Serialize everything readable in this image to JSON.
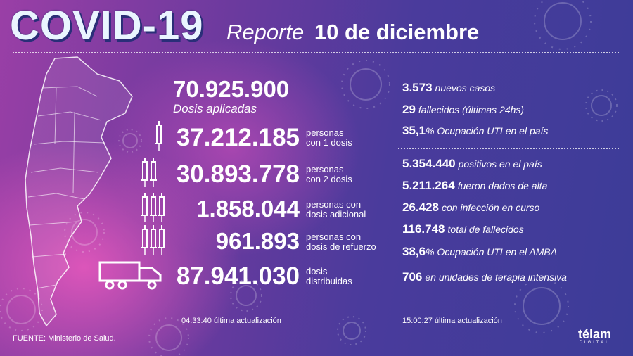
{
  "header": {
    "title": "COVID-19",
    "subtitle_prefix": "Reporte",
    "subtitle_date": "10 de diciembre"
  },
  "doses_applied": {
    "value": "70.925.900",
    "label": "Dosis aplicadas"
  },
  "vaccine_stats": [
    {
      "value": "37.212.185",
      "label_line1": "personas",
      "label_line2": "con 1 dosis",
      "icon": "syringe-icon"
    },
    {
      "value": "30.893.778",
      "label_line1": "personas",
      "label_line2": "con 2 dosis",
      "icon": "syringe-icon"
    },
    {
      "value": "1.858.044",
      "label_line1": "personas con",
      "label_line2": "dosis adicional",
      "icon": "syringe-icon"
    },
    {
      "value": "961.893",
      "label_line1": "personas con",
      "label_line2": "dosis de refuerzo",
      "icon": "syringe-icon"
    },
    {
      "value": "87.941.030",
      "label_line1": "dosis",
      "label_line2": "distribuidas",
      "icon": "truck-icon"
    }
  ],
  "daily_stats": [
    {
      "value": "3.573",
      "text": "nuevos casos"
    },
    {
      "value": "29",
      "text": "fallecidos (últimas 24hs)"
    },
    {
      "value": "35,1",
      "text": "% Ocupación UTI en el país"
    }
  ],
  "total_stats": [
    {
      "value": "5.354.440",
      "text": "positivos en el país"
    },
    {
      "value": "5.211.264",
      "text": "fueron dados de alta"
    },
    {
      "value": "26.428",
      "text": "con infección en curso"
    },
    {
      "value": "116.748",
      "text": "total de fallecidos"
    },
    {
      "value": "38,6",
      "text": "% Ocupación UTI en el AMBA"
    },
    {
      "value": "706",
      "text": "en unidades de terapia intensiva"
    }
  ],
  "update_left": "04:33:40 última actualización",
  "update_right": "15:00:27 última actualización",
  "source": "FUENTE: Ministerio de Salud.",
  "brand": {
    "name": "télam",
    "sub": "DIGITAL"
  },
  "colors": {
    "title": "#eaf5ff",
    "text": "#ffffff",
    "pink_glow": "#ec5abe",
    "blue_bg": "#3c3c98"
  }
}
